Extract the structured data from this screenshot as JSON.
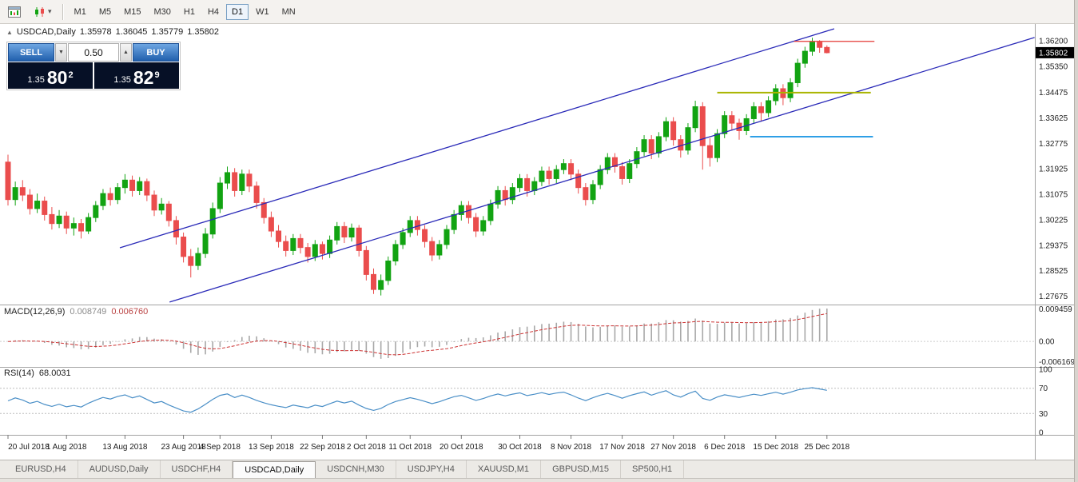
{
  "toolbar": {
    "icons": [
      {
        "name": "chart-window-icon"
      },
      {
        "name": "chart-style-dropdown-icon"
      }
    ],
    "timeframes": [
      {
        "label": "M1",
        "active": false
      },
      {
        "label": "M5",
        "active": false
      },
      {
        "label": "M15",
        "active": false
      },
      {
        "label": "M30",
        "active": false
      },
      {
        "label": "H1",
        "active": false
      },
      {
        "label": "H4",
        "active": false
      },
      {
        "label": "D1",
        "active": true
      },
      {
        "label": "W1",
        "active": false
      },
      {
        "label": "MN",
        "active": false
      }
    ]
  },
  "chart": {
    "collapse_icon": "▲",
    "symbol": "USDCAD,Daily",
    "open": "1.35978",
    "high": "1.36045",
    "low": "1.35779",
    "close": "1.35802"
  },
  "one_click": {
    "sell_label": "SELL",
    "buy_label": "BUY",
    "lot_value": "0.50",
    "spin_down": "▼",
    "spin_up": "▲",
    "bid": {
      "prefix": "1.35",
      "big": "80",
      "sup": "2"
    },
    "ask": {
      "prefix": "1.35",
      "big": "82",
      "sup": "9"
    }
  },
  "macd_panel": {
    "label": "MACD(12,26,9)",
    "values": [
      "0.008749",
      "0.006760"
    ],
    "axis_labels": [
      "0.009459",
      "0.00",
      "-0.006169"
    ]
  },
  "rsi_panel": {
    "label": "RSI(14)",
    "value": "68.0031",
    "axis_labels": [
      "100",
      "70",
      "30",
      "0"
    ],
    "levels": [
      70,
      30
    ]
  },
  "tabs": {
    "items": [
      {
        "label": "EURUSD,H4",
        "active": false
      },
      {
        "label": "AUDUSD,Daily",
        "active": false
      },
      {
        "label": "USDCHF,H4",
        "active": false
      },
      {
        "label": "USDCAD,Daily",
        "active": true
      },
      {
        "label": "USDCNH,M30",
        "active": false
      },
      {
        "label": "USDJPY,H4",
        "active": false
      },
      {
        "label": "XAUUSD,M1",
        "active": false
      },
      {
        "label": "GBPUSD,M15",
        "active": false
      },
      {
        "label": "SP500,H1",
        "active": false
      }
    ]
  },
  "colors": {
    "up": "#12a312",
    "down": "#ea4d4d",
    "trend": "#2a2ab8",
    "hline_red": "#e53935",
    "hline_olive": "#aab400",
    "hline_blue": "#2e9fe6",
    "macd_hist": "#a8a8a8",
    "macd_signal": "#cc3333",
    "rsi_line": "#4a8fc7",
    "current_tag_bg": "#000000",
    "current_tag_text": "#ffffff"
  },
  "chart_data": {
    "type": "candlestick",
    "symbol": "USDCAD",
    "timeframe": "Daily",
    "price_range": [
      1.2745,
      1.366
    ],
    "price_axis_labels": [
      "1.36200",
      "1.35350",
      "1.34475",
      "1.33625",
      "1.32775",
      "1.31925",
      "1.31075",
      "1.30225",
      "1.29375",
      "1.28525",
      "1.27675"
    ],
    "current_price": "1.35802",
    "x_axis": {
      "labels": [
        "20 Jul 2018",
        "1 Aug 2018",
        "13 Aug 2018",
        "23 Aug 2018",
        "4 Sep 2018",
        "13 Sep 2018",
        "22 Sep 2018",
        "2 Oct 2018",
        "11 Oct 2018",
        "20 Oct 2018",
        "30 Oct 2018",
        "8 Nov 2018",
        "17 Nov 2018",
        "27 Nov 2018",
        "6 Dec 2018",
        "15 Dec 2018",
        "25 Dec 2018"
      ],
      "indices": [
        0,
        8,
        16,
        24,
        29,
        36,
        43,
        49,
        55,
        62,
        70,
        77,
        84,
        91,
        98,
        105,
        112
      ]
    },
    "candles": [
      [
        1.3215,
        1.324,
        1.307,
        1.309
      ],
      [
        1.309,
        1.315,
        1.307,
        1.313
      ],
      [
        1.313,
        1.3155,
        1.3085,
        1.3105
      ],
      [
        1.3105,
        1.3125,
        1.304,
        1.306
      ],
      [
        1.306,
        1.311,
        1.3045,
        1.3085
      ],
      [
        1.3085,
        1.31,
        1.302,
        1.304
      ],
      [
        1.304,
        1.3065,
        1.299,
        1.301
      ],
      [
        1.301,
        1.3055,
        1.2995,
        1.3035
      ],
      [
        1.3035,
        1.305,
        1.2975,
        1.2995
      ],
      [
        1.2995,
        1.303,
        1.297,
        1.301
      ],
      [
        1.301,
        1.3025,
        1.296,
        1.2985
      ],
      [
        1.2985,
        1.3045,
        1.2975,
        1.303
      ],
      [
        1.303,
        1.3085,
        1.3015,
        1.307
      ],
      [
        1.307,
        1.3125,
        1.3055,
        1.311
      ],
      [
        1.311,
        1.313,
        1.307,
        1.309
      ],
      [
        1.309,
        1.3145,
        1.3075,
        1.313
      ],
      [
        1.313,
        1.3175,
        1.311,
        1.3155
      ],
      [
        1.3155,
        1.317,
        1.31,
        1.312
      ],
      [
        1.312,
        1.3165,
        1.3105,
        1.315
      ],
      [
        1.315,
        1.316,
        1.3085,
        1.3105
      ],
      [
        1.3105,
        1.312,
        1.3035,
        1.3055
      ],
      [
        1.3055,
        1.3095,
        1.304,
        1.3075
      ],
      [
        1.3075,
        1.3085,
        1.3,
        1.302
      ],
      [
        1.302,
        1.3035,
        1.294,
        1.2965
      ],
      [
        1.2965,
        1.298,
        1.288,
        1.29
      ],
      [
        1.29,
        1.2925,
        1.283,
        1.287
      ],
      [
        1.287,
        1.293,
        1.2855,
        1.291
      ],
      [
        1.291,
        1.2995,
        1.2895,
        1.2975
      ],
      [
        1.2975,
        1.308,
        1.296,
        1.306
      ],
      [
        1.306,
        1.3165,
        1.3045,
        1.3145
      ],
      [
        1.3145,
        1.32,
        1.3125,
        1.318
      ],
      [
        1.318,
        1.3195,
        1.31,
        1.312
      ],
      [
        1.312,
        1.319,
        1.3105,
        1.3175
      ],
      [
        1.3175,
        1.319,
        1.3115,
        1.3135
      ],
      [
        1.3135,
        1.315,
        1.306,
        1.308
      ],
      [
        1.308,
        1.3095,
        1.301,
        1.303
      ],
      [
        1.303,
        1.305,
        1.2965,
        1.2985
      ],
      [
        1.2985,
        1.3005,
        1.293,
        1.295
      ],
      [
        1.295,
        1.297,
        1.29,
        1.292
      ],
      [
        1.292,
        1.2975,
        1.2905,
        1.296
      ],
      [
        1.296,
        1.2975,
        1.291,
        1.293
      ],
      [
        1.293,
        1.2945,
        1.288,
        1.29
      ],
      [
        1.29,
        1.2955,
        1.2885,
        1.294
      ],
      [
        1.294,
        1.295,
        1.289,
        1.291
      ],
      [
        1.291,
        1.297,
        1.2895,
        1.2955
      ],
      [
        1.2955,
        1.3015,
        1.294,
        1.3
      ],
      [
        1.3,
        1.3015,
        1.2945,
        1.2965
      ],
      [
        1.2965,
        1.301,
        1.295,
        1.2995
      ],
      [
        1.2995,
        1.3005,
        1.29,
        1.292
      ],
      [
        1.292,
        1.2935,
        1.282,
        1.284
      ],
      [
        1.284,
        1.286,
        1.2775,
        1.279
      ],
      [
        1.279,
        1.284,
        1.277,
        1.282
      ],
      [
        1.282,
        1.29,
        1.2805,
        1.2885
      ],
      [
        1.2885,
        1.2955,
        1.287,
        1.294
      ],
      [
        1.294,
        1.2995,
        1.2925,
        1.298
      ],
      [
        1.298,
        1.3035,
        1.2965,
        1.302
      ],
      [
        1.302,
        1.3035,
        1.297,
        1.299
      ],
      [
        1.299,
        1.3005,
        1.293,
        1.295
      ],
      [
        1.295,
        1.2965,
        1.2885,
        1.2905
      ],
      [
        1.2905,
        1.2955,
        1.289,
        1.294
      ],
      [
        1.294,
        1.3005,
        1.2925,
        1.299
      ],
      [
        1.299,
        1.3055,
        1.2975,
        1.304
      ],
      [
        1.304,
        1.3085,
        1.302,
        1.307
      ],
      [
        1.307,
        1.3085,
        1.301,
        1.303
      ],
      [
        1.303,
        1.3045,
        1.2965,
        1.2985
      ],
      [
        1.2985,
        1.3035,
        1.297,
        1.302
      ],
      [
        1.302,
        1.309,
        1.3005,
        1.3075
      ],
      [
        1.3075,
        1.3135,
        1.306,
        1.312
      ],
      [
        1.312,
        1.3135,
        1.307,
        1.309
      ],
      [
        1.309,
        1.3145,
        1.3075,
        1.313
      ],
      [
        1.313,
        1.3175,
        1.3115,
        1.316
      ],
      [
        1.316,
        1.3175,
        1.31,
        1.312
      ],
      [
        1.312,
        1.3165,
        1.3105,
        1.315
      ],
      [
        1.315,
        1.32,
        1.3135,
        1.3185
      ],
      [
        1.3185,
        1.32,
        1.314,
        1.316
      ],
      [
        1.316,
        1.3205,
        1.3145,
        1.319
      ],
      [
        1.319,
        1.3225,
        1.3175,
        1.321
      ],
      [
        1.321,
        1.3225,
        1.3155,
        1.3175
      ],
      [
        1.3175,
        1.319,
        1.311,
        1.313
      ],
      [
        1.313,
        1.3145,
        1.307,
        1.309
      ],
      [
        1.309,
        1.3155,
        1.3075,
        1.314
      ],
      [
        1.314,
        1.3205,
        1.3125,
        1.319
      ],
      [
        1.319,
        1.3245,
        1.3175,
        1.323
      ],
      [
        1.323,
        1.3245,
        1.318,
        1.32
      ],
      [
        1.32,
        1.3215,
        1.314,
        1.316
      ],
      [
        1.316,
        1.3225,
        1.3145,
        1.321
      ],
      [
        1.321,
        1.3265,
        1.3195,
        1.325
      ],
      [
        1.325,
        1.3305,
        1.3235,
        1.329
      ],
      [
        1.329,
        1.3305,
        1.3225,
        1.3245
      ],
      [
        1.3245,
        1.3315,
        1.323,
        1.33
      ],
      [
        1.33,
        1.3365,
        1.3285,
        1.335
      ],
      [
        1.335,
        1.3365,
        1.327,
        1.329
      ],
      [
        1.329,
        1.3305,
        1.323,
        1.3255
      ],
      [
        1.3255,
        1.3345,
        1.324,
        1.333
      ],
      [
        1.333,
        1.342,
        1.3315,
        1.34
      ],
      [
        1.34,
        1.3415,
        1.319,
        1.327
      ],
      [
        1.327,
        1.3295,
        1.32,
        1.323
      ],
      [
        1.323,
        1.3325,
        1.3215,
        1.331
      ],
      [
        1.331,
        1.3385,
        1.3295,
        1.337
      ],
      [
        1.337,
        1.3385,
        1.332,
        1.3345
      ],
      [
        1.3345,
        1.336,
        1.329,
        1.332
      ],
      [
        1.332,
        1.3375,
        1.3305,
        1.336
      ],
      [
        1.336,
        1.3415,
        1.3345,
        1.34
      ],
      [
        1.34,
        1.3415,
        1.335,
        1.338
      ],
      [
        1.338,
        1.3435,
        1.3365,
        1.342
      ],
      [
        1.342,
        1.3475,
        1.3405,
        1.346
      ],
      [
        1.346,
        1.3475,
        1.3405,
        1.343
      ],
      [
        1.343,
        1.3495,
        1.3415,
        1.348
      ],
      [
        1.348,
        1.356,
        1.3465,
        1.3545
      ],
      [
        1.3545,
        1.36,
        1.353,
        1.3585
      ],
      [
        1.3585,
        1.363,
        1.357,
        1.3615
      ],
      [
        1.3615,
        1.3622,
        1.358,
        1.3598
      ],
      [
        1.35978,
        1.36045,
        1.35779,
        1.35802
      ]
    ],
    "trendlines": [
      {
        "name": "channel-lower",
        "from_index": 22.1,
        "from_price": 1.2748,
        "to_index": 140.4,
        "to_price": 1.3631
      },
      {
        "name": "channel-upper",
        "from_index": 15.3,
        "from_price": 1.2929,
        "to_index": 113.0,
        "to_price": 1.366
      }
    ],
    "hlines": [
      {
        "name": "resistance-line",
        "price": 1.3618,
        "from_index": 107.5,
        "to_index": 118.5,
        "color": "#e53935",
        "width": 1.2
      },
      {
        "name": "support-line-olive",
        "price": 1.3447,
        "from_index": 97.0,
        "to_index": 118.0,
        "color": "#aab400",
        "width": 2
      },
      {
        "name": "support-line-blue",
        "price": 1.33,
        "from_index": 101.5,
        "to_index": 118.3,
        "color": "#2e9fe6",
        "width": 2
      }
    ],
    "indicators": {
      "macd": {
        "fast": 12,
        "slow": 26,
        "signal": 9,
        "last": 0.008749,
        "last_signal": 0.00676,
        "scale": [
          0.009459,
          -0.006169
        ]
      },
      "rsi": {
        "period": 14,
        "last": 68.0031,
        "levels": [
          70,
          30
        ]
      }
    }
  }
}
